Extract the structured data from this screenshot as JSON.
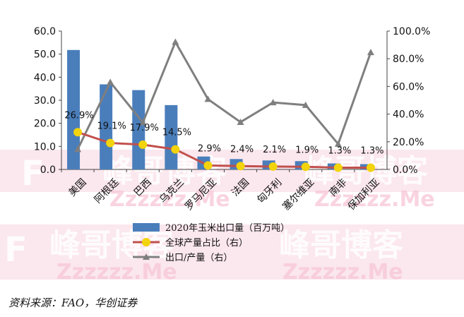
{
  "chart_data": {
    "type": "bar",
    "categories": [
      "美国",
      "阿根廷",
      "巴西",
      "乌克兰",
      "罗马尼亚",
      "法国",
      "匈牙利",
      "塞尔维亚",
      "南非",
      "保加利亚"
    ],
    "series": [
      {
        "name": "2020年玉米出口量（百万吨）",
        "type": "bar",
        "axis": "left",
        "values": [
          51.8,
          36.9,
          34.4,
          27.9,
          5.6,
          4.5,
          3.9,
          3.6,
          2.6,
          2.3
        ]
      },
      {
        "name": "全球产量占比（右）",
        "type": "line",
        "axis": "right",
        "values": [
          26.9,
          19.1,
          17.9,
          14.5,
          2.9,
          2.4,
          2.1,
          1.9,
          1.3,
          1.3
        ],
        "labels": [
          "26.9%",
          "19.1%",
          "17.9%",
          "14.5%",
          "2.9%",
          "2.4%",
          "2.1%",
          "1.9%",
          "1.3%",
          "1.3%"
        ]
      },
      {
        "name": "出口/产量（右）",
        "type": "line",
        "axis": "right",
        "values": [
          14.6,
          63.1,
          33.9,
          92.1,
          50.8,
          34.2,
          48.4,
          46.5,
          18.4,
          84.6
        ]
      }
    ],
    "yleft": {
      "min": 0,
      "max": 60,
      "ticks": [
        "0.0",
        "10.0",
        "20.0",
        "30.0",
        "40.0",
        "50.0",
        "60.0"
      ]
    },
    "yright": {
      "min": 0,
      "max": 100,
      "ticks": [
        "0.0%",
        "20.0%",
        "40.0%",
        "60.0%",
        "80.0%",
        "100.0%"
      ]
    },
    "grid": false,
    "legend": "bottom-center",
    "colors": {
      "bar": "#4a7ebb",
      "share_line": "#c0504d",
      "share_marker": "#f2d30c",
      "ratio_line": "#7f7f7f"
    }
  },
  "source": "资料来源：FAO，华创证券",
  "watermark": {
    "brand": "峰哥博客",
    "domain": "Zzzzzz.Me",
    "letter": "F"
  }
}
